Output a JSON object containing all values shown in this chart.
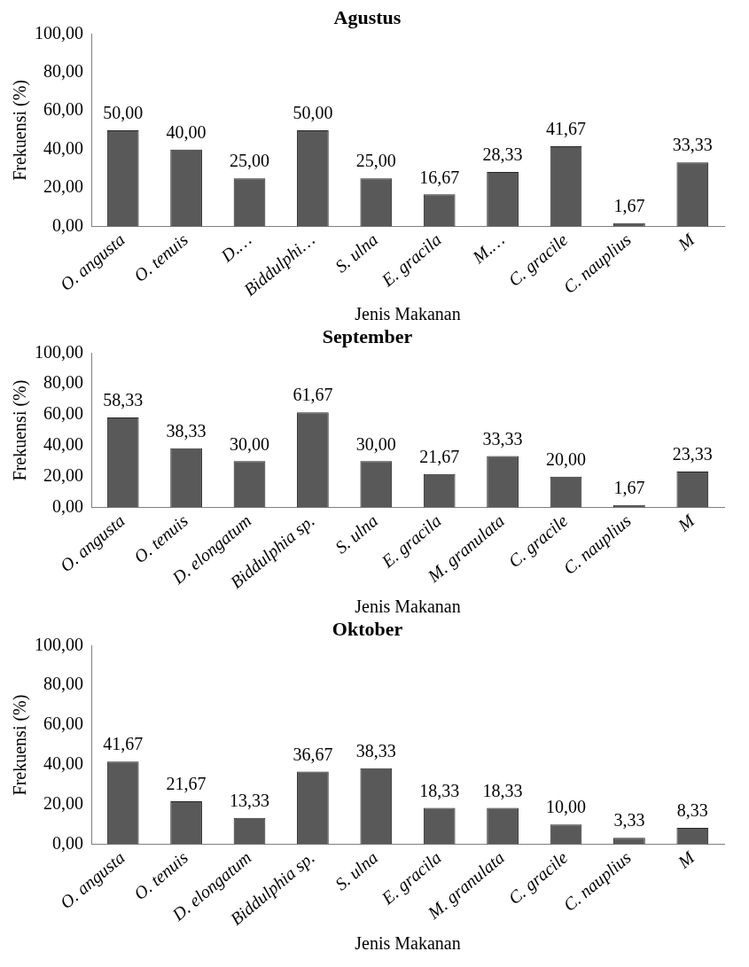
{
  "chart_data": [
    {
      "type": "bar",
      "title": "Agustus",
      "xlabel": "Jenis Makanan",
      "ylabel": "Frekuensi (%)",
      "categories": [
        "O. angusta",
        "O. tenuis",
        "D.…",
        "Biddulphi…",
        "S. ulna",
        "E. gracila",
        "M.…",
        "C. gracile",
        "C. nauplius",
        "M"
      ],
      "values": [
        50,
        40,
        25,
        50,
        25,
        16.67,
        28.33,
        41.67,
        1.67,
        33.33
      ],
      "color": "#595959",
      "value_labels": [
        "50,00",
        "40,00",
        "25,00",
        "50,00",
        "25,00",
        "16,67",
        "28,33",
        "41,67",
        "1,67",
        "33,33"
      ],
      "ylim": [
        0,
        100
      ],
      "yticks": [
        {
          "value": 0,
          "label": "0,00"
        },
        {
          "value": 20,
          "label": "20,00"
        },
        {
          "value": 40,
          "label": "40,00"
        },
        {
          "value": 60,
          "label": "60,00"
        },
        {
          "value": 80,
          "label": "80,00"
        },
        {
          "value": 100,
          "label": "100,00"
        }
      ],
      "grid": false,
      "legend": false
    },
    {
      "type": "bar",
      "title": "September",
      "xlabel": "Jenis Makanan",
      "ylabel": "Frekuensi (%)",
      "categories": [
        "O. angusta",
        "O. tenuis",
        "D. elongatum",
        "Biddulphia sp.",
        "S. ulna",
        "E. gracila",
        "M. granulata",
        "C. gracile",
        "C. nauplius",
        "M"
      ],
      "values": [
        58.33,
        38.33,
        30,
        61.67,
        30,
        21.67,
        33.33,
        20,
        1.67,
        23.33
      ],
      "color": "#595959",
      "value_labels": [
        "58,33",
        "38,33",
        "30,00",
        "61,67",
        "30,00",
        "21,67",
        "33,33",
        "20,00",
        "1,67",
        "23,33"
      ],
      "ylim": [
        0,
        100
      ],
      "yticks": [
        {
          "value": 0,
          "label": "0,00"
        },
        {
          "value": 20,
          "label": "20,00"
        },
        {
          "value": 40,
          "label": "40,00"
        },
        {
          "value": 60,
          "label": "60,00"
        },
        {
          "value": 80,
          "label": "80,00"
        },
        {
          "value": 100,
          "label": "100,00"
        }
      ],
      "grid": false,
      "legend": false
    },
    {
      "type": "bar",
      "title": "Oktober",
      "xlabel": "Jenis Makanan",
      "ylabel": "Frekuensi (%)",
      "categories": [
        "O. angusta",
        "O. tenuis",
        "D. elongatum",
        "Biddulphia sp.",
        "S. ulna",
        "E. gracila",
        "M. granulata",
        "C. gracile",
        "C. nauplius",
        "M"
      ],
      "values": [
        41.67,
        21.67,
        13.33,
        36.67,
        38.33,
        18.33,
        18.33,
        10,
        3.33,
        8.33
      ],
      "color": "#595959",
      "value_labels": [
        "41,67",
        "21,67",
        "13,33",
        "36,67",
        "38,33",
        "18,33",
        "18,33",
        "10,00",
        "3,33",
        "8,33"
      ],
      "ylim": [
        0,
        100
      ],
      "yticks": [
        {
          "value": 0,
          "label": "0,00"
        },
        {
          "value": 20,
          "label": "20,00"
        },
        {
          "value": 40,
          "label": "40,00"
        },
        {
          "value": 60,
          "label": "60,00"
        },
        {
          "value": 80,
          "label": "80,00"
        },
        {
          "value": 100,
          "label": "100,00"
        }
      ],
      "grid": false,
      "legend": false
    }
  ]
}
